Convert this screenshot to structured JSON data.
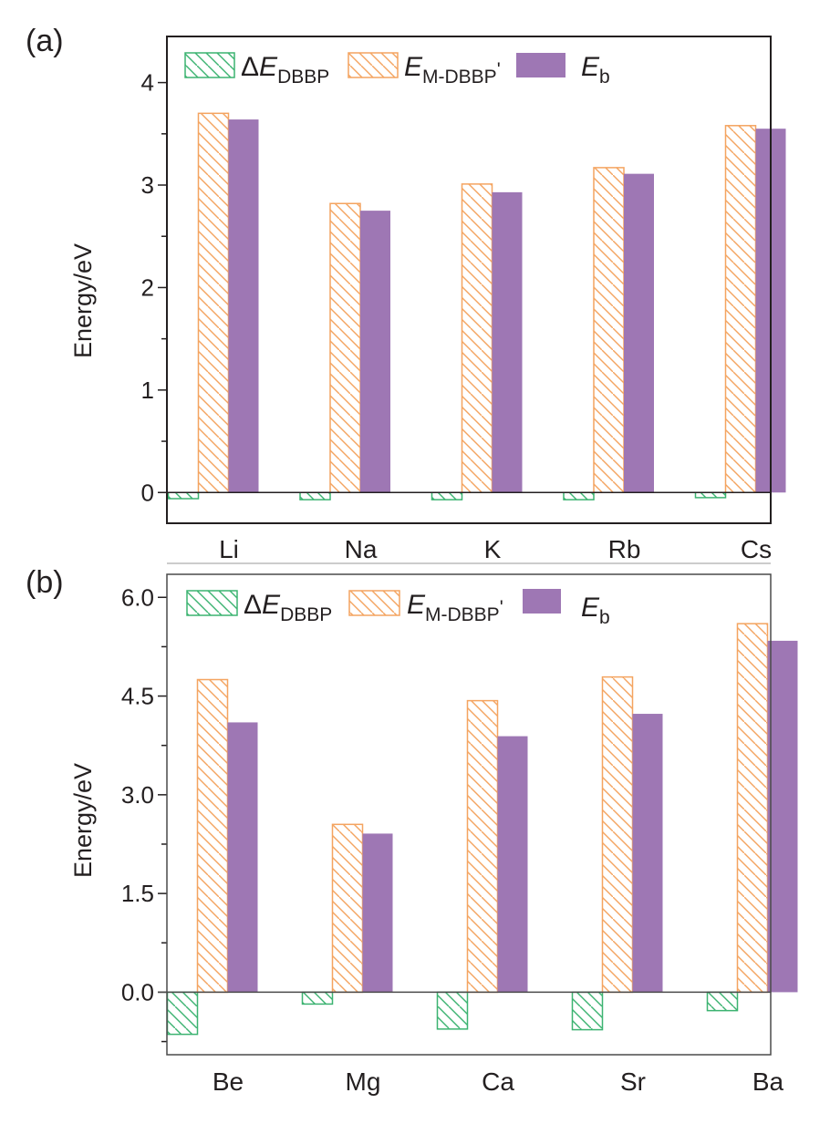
{
  "colors": {
    "delta_e": "#3cb371",
    "e_m_dbbp": "#f4a460",
    "e_b": "#9e77b4",
    "axis": "#231f20"
  },
  "legend": {
    "delta_e": {
      "prefix": "Δ",
      "main": "E",
      "sub": "DBBP"
    },
    "e_m_dbbp": {
      "main": "E",
      "sub": "M-DBBP",
      "suffix": "'"
    },
    "e_b": {
      "main": "E",
      "sub": "b"
    }
  },
  "chart_data": [
    {
      "type": "bar",
      "panel_label": "(a)",
      "title": "",
      "xlabel": "",
      "ylabel": "Energy/eV",
      "ylim": [
        -0.3,
        4.45
      ],
      "yticks": [
        0,
        1,
        2,
        3,
        4
      ],
      "ytick_labels": [
        "0",
        "1",
        "2",
        "3",
        "4"
      ],
      "minor_ticks": true,
      "grid": false,
      "legend_position": "top-left",
      "categories": [
        "Li",
        "Na",
        "K",
        "Rb",
        "Cs"
      ],
      "series": [
        {
          "name": "ΔE_DBBP",
          "style": "hatched",
          "values": [
            -0.06,
            -0.07,
            -0.07,
            -0.07,
            -0.05
          ]
        },
        {
          "name": "E_M-DBBP'",
          "style": "hatched",
          "values": [
            3.7,
            2.82,
            3.01,
            3.17,
            3.58
          ]
        },
        {
          "name": "E_b",
          "style": "solid",
          "values": [
            3.64,
            2.75,
            2.93,
            3.11,
            3.55
          ]
        }
      ]
    },
    {
      "type": "bar",
      "panel_label": "(b)",
      "title": "",
      "xlabel": "",
      "ylabel": "Energy/eV",
      "ylim": [
        -0.95,
        6.35
      ],
      "yticks": [
        0.0,
        1.5,
        3.0,
        4.5,
        6.0
      ],
      "ytick_labels": [
        "0.0",
        "1.5",
        "3.0",
        "4.5",
        "6.0"
      ],
      "minor_ticks": true,
      "grid": false,
      "legend_position": "top-left",
      "categories": [
        "Be",
        "Mg",
        "Ca",
        "Sr",
        "Ba"
      ],
      "series": [
        {
          "name": "ΔE_DBBP",
          "style": "hatched",
          "values": [
            -0.64,
            -0.18,
            -0.56,
            -0.57,
            -0.28
          ]
        },
        {
          "name": "E_M-DBBP'",
          "style": "hatched",
          "values": [
            4.75,
            2.55,
            4.43,
            4.79,
            5.6
          ]
        },
        {
          "name": "E_b",
          "style": "solid",
          "values": [
            4.1,
            2.41,
            3.89,
            4.23,
            5.34
          ]
        }
      ]
    }
  ]
}
